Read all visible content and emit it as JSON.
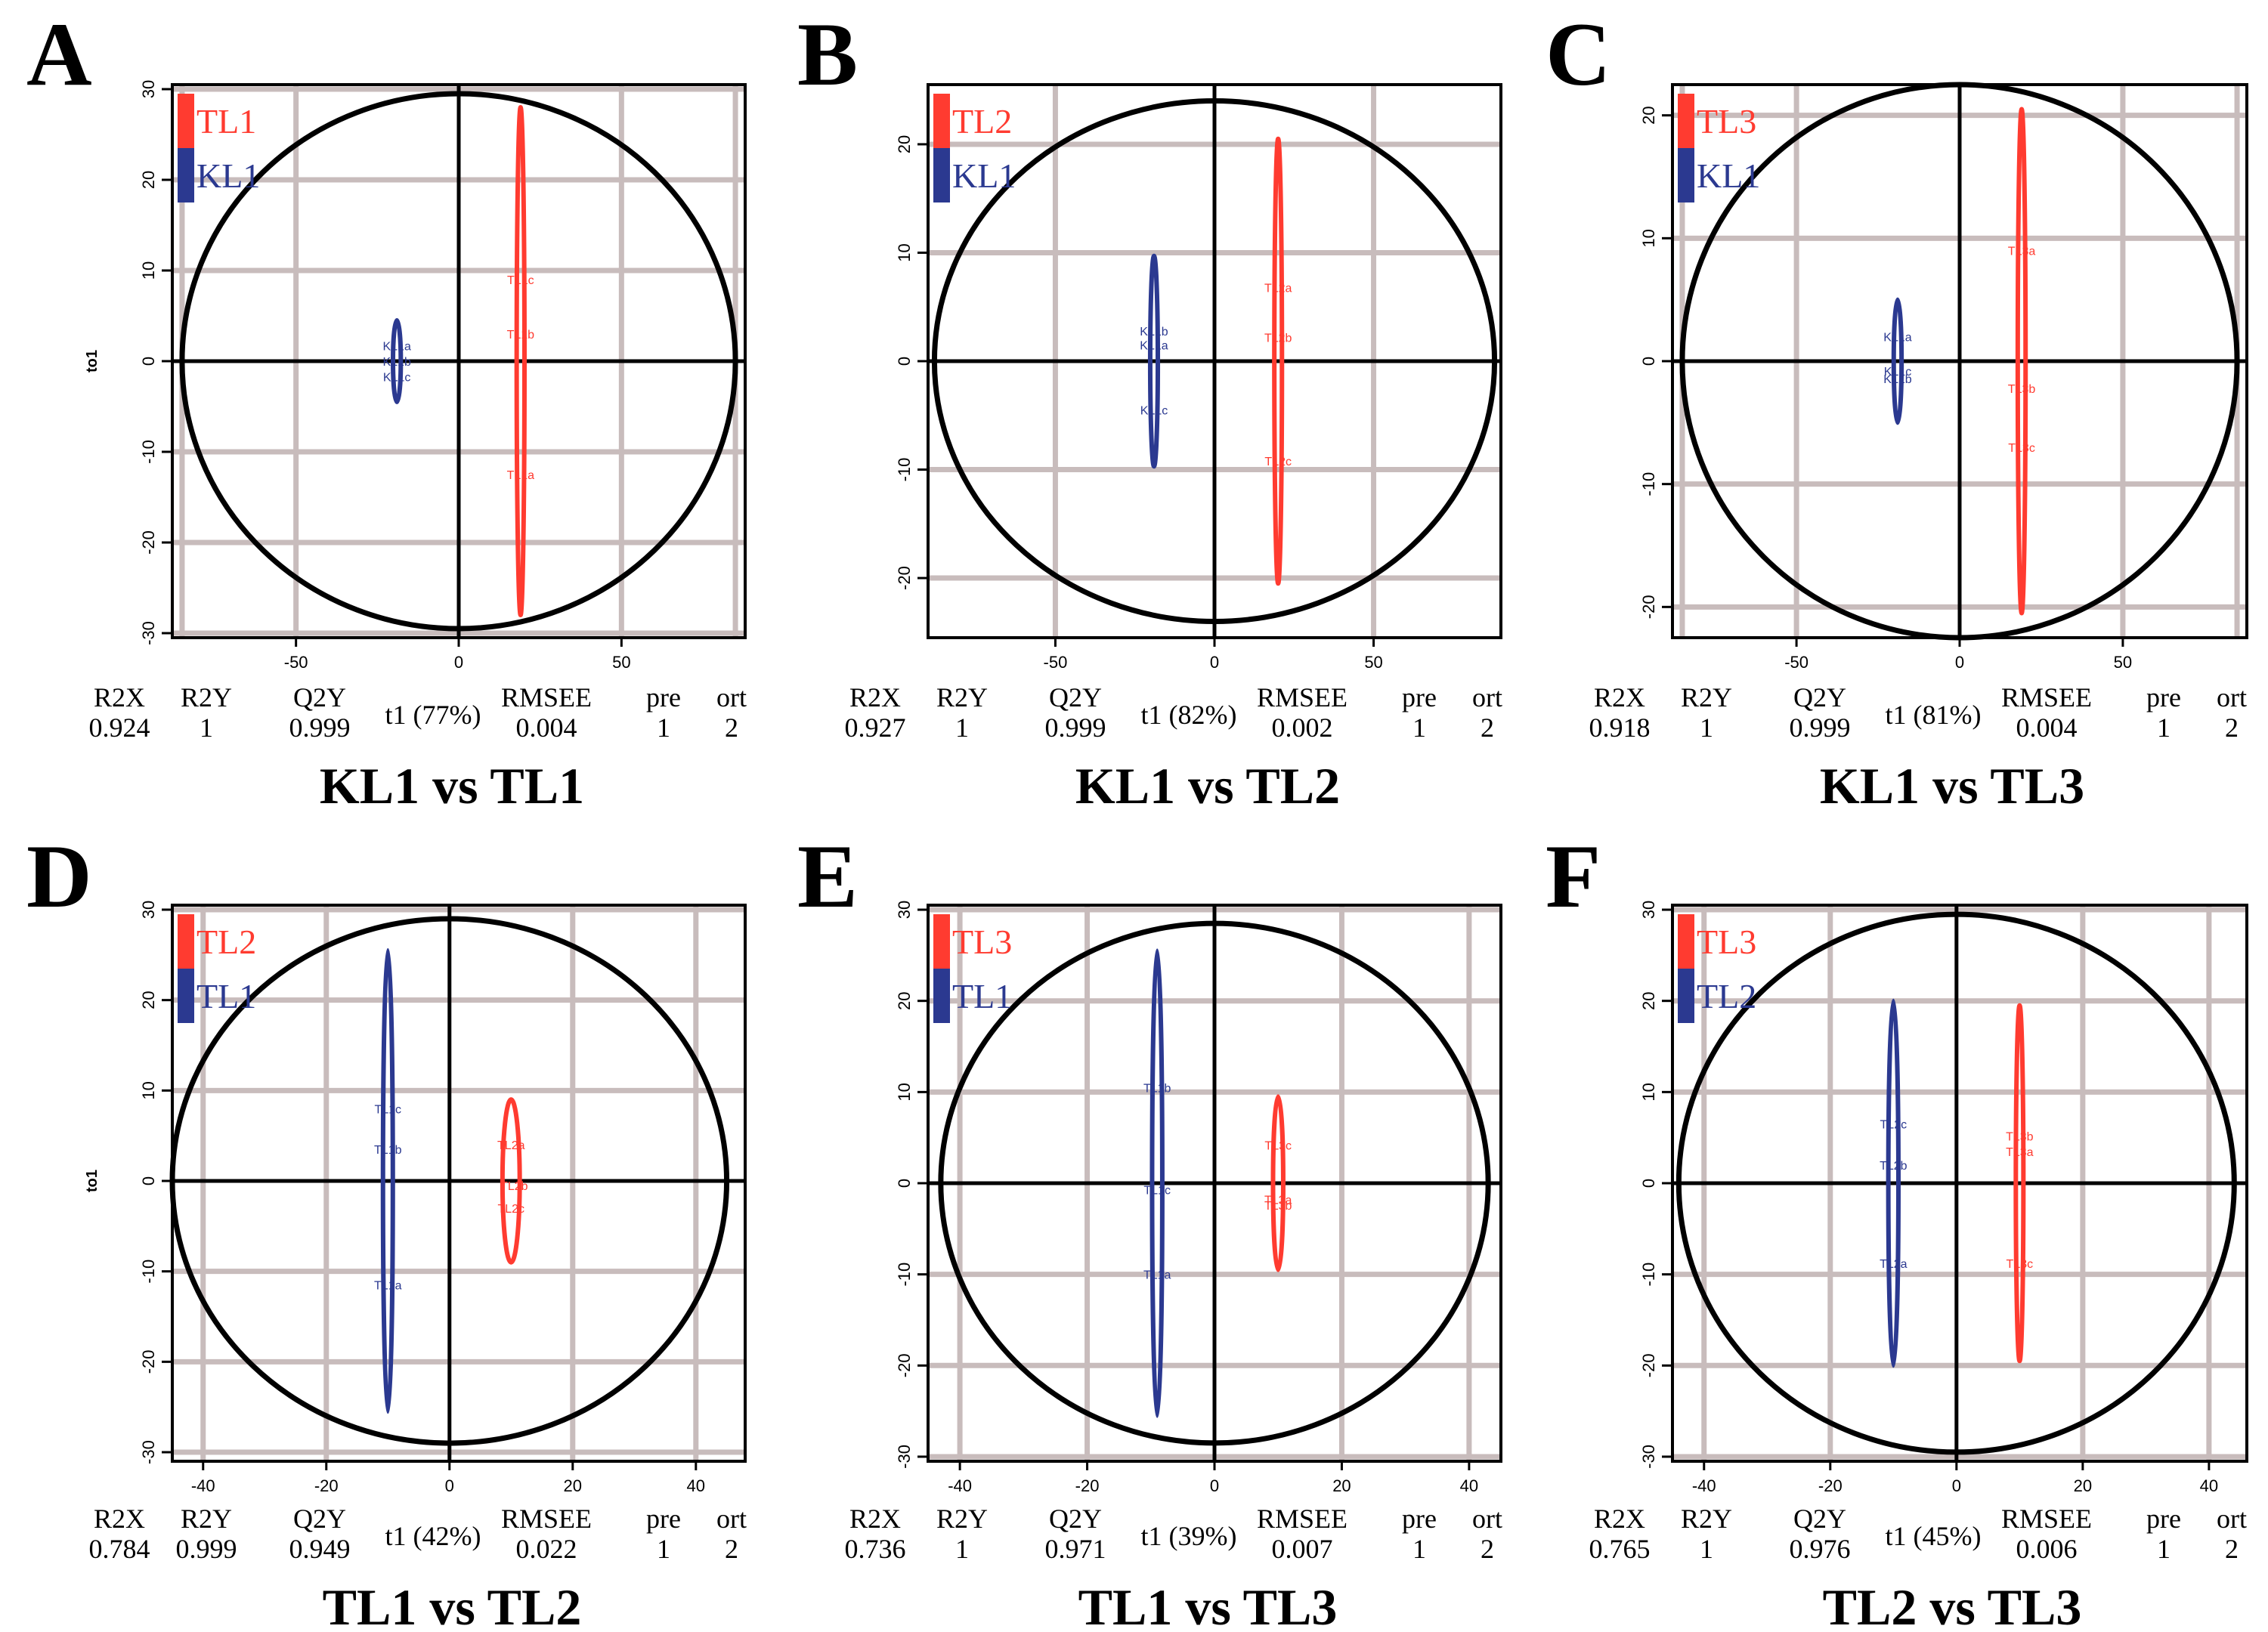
{
  "colors": {
    "red": "#ff3b30",
    "blue": "#2b3990",
    "grid": "#c8bcbc",
    "black": "#000000"
  },
  "chart_data": [
    {
      "panel_letter": "A",
      "type": "scatter",
      "title": "KL1 vs TL1",
      "xlim": [
        -88,
        88
      ],
      "ylim": [
        -30.5,
        30.5
      ],
      "xticks": [
        -50,
        0,
        50
      ],
      "yticks": [
        -30,
        -20,
        -10,
        0,
        10,
        20,
        30
      ],
      "hgrid": [
        -30,
        -20,
        -10,
        10,
        20,
        30
      ],
      "vgrid": [
        -85,
        -50,
        50,
        85
      ],
      "ylabel": "to1",
      "xlabel": "t1 (77%)",
      "circle_rx": 85,
      "circle_ry": 29.5,
      "legend": [
        {
          "label": "TL1",
          "color": "red"
        },
        {
          "label": "KL1",
          "color": "blue"
        }
      ],
      "groups": [
        {
          "name": "KL1",
          "color": "blue",
          "center": [
            -19,
            0
          ],
          "ellipse_r": [
            1.2,
            4.5
          ],
          "points": [
            {
              "label": "KL1a",
              "t1": -19,
              "to1": 1.7
            },
            {
              "label": "KL1b",
              "t1": -19,
              "to1": 0
            },
            {
              "label": "KL1c",
              "t1": -19,
              "to1": -1.7
            }
          ]
        },
        {
          "name": "TL1",
          "color": "red",
          "center": [
            19,
            0
          ],
          "ellipse_r": [
            1.2,
            28
          ],
          "points": [
            {
              "label": "TL1c",
              "t1": 19,
              "to1": 9
            },
            {
              "label": "TL1b",
              "t1": 19,
              "to1": 3
            },
            {
              "label": "TL1a",
              "t1": 19,
              "to1": -12.5
            }
          ]
        }
      ],
      "stats": {
        "headers": [
          "R2X",
          "R2Y",
          "Q2Y",
          "RMSEE",
          "pre",
          "ort"
        ],
        "values": [
          "0.924",
          "1",
          "0.999",
          "0.004",
          "1",
          "2"
        ]
      }
    },
    {
      "panel_letter": "B",
      "type": "scatter",
      "title": "KL1 vs TL2",
      "xlim": [
        -90,
        90
      ],
      "ylim": [
        -25.5,
        25.5
      ],
      "xticks": [
        -50,
        0,
        50
      ],
      "yticks": [
        -20,
        -10,
        0,
        10,
        20
      ],
      "hgrid": [
        -20,
        -10,
        10,
        20
      ],
      "vgrid": [
        -50,
        50
      ],
      "ylabel": "",
      "xlabel": "t1 (82%)",
      "circle_rx": 88,
      "circle_ry": 24,
      "legend": [
        {
          "label": "TL2",
          "color": "red"
        },
        {
          "label": "KL1",
          "color": "blue"
        }
      ],
      "groups": [
        {
          "name": "KL1",
          "color": "blue",
          "center": [
            -19,
            0
          ],
          "ellipse_r": [
            1.2,
            9.7
          ],
          "points": [
            {
              "label": "KL1b",
              "t1": -19,
              "to1": 2.8
            },
            {
              "label": "KL1a",
              "t1": -19,
              "to1": 1.5
            },
            {
              "label": "KL1c",
              "t1": -19,
              "to1": -4.5
            }
          ]
        },
        {
          "name": "TL2",
          "color": "red",
          "center": [
            20,
            0
          ],
          "ellipse_r": [
            1.2,
            20.5
          ],
          "points": [
            {
              "label": "TL2a",
              "t1": 20,
              "to1": 6.8
            },
            {
              "label": "TL2b",
              "t1": 20,
              "to1": 2.2
            },
            {
              "label": "TL2c",
              "t1": 20,
              "to1": -9.2
            }
          ]
        }
      ],
      "stats": {
        "headers": [
          "R2X",
          "R2Y",
          "Q2Y",
          "RMSEE",
          "pre",
          "ort"
        ],
        "values": [
          "0.927",
          "1",
          "0.999",
          "0.002",
          "1",
          "2"
        ]
      }
    },
    {
      "panel_letter": "C",
      "type": "scatter",
      "title": "KL1 vs TL3",
      "xlim": [
        -88,
        88
      ],
      "ylim": [
        -22.5,
        22.5
      ],
      "xticks": [
        -50,
        0,
        50
      ],
      "yticks": [
        -20,
        -10,
        0,
        10,
        20
      ],
      "hgrid": [
        -20,
        -10,
        10,
        20
      ],
      "vgrid": [
        -85,
        -50,
        50,
        85
      ],
      "ylabel": "",
      "xlabel": "t1 (81%)",
      "circle_rx": 85,
      "circle_ry": 22.5,
      "legend": [
        {
          "label": "TL3",
          "color": "red"
        },
        {
          "label": "KL1",
          "color": "blue"
        }
      ],
      "groups": [
        {
          "name": "KL1",
          "color": "blue",
          "center": [
            -19,
            0
          ],
          "ellipse_r": [
            1.2,
            5
          ],
          "points": [
            {
              "label": "KL1a",
              "t1": -19,
              "to1": 2
            },
            {
              "label": "KL1c",
              "t1": -19,
              "to1": -0.8
            },
            {
              "label": "KL1b",
              "t1": -19,
              "to1": -1.4
            }
          ]
        },
        {
          "name": "TL3",
          "color": "red",
          "center": [
            19,
            0
          ],
          "ellipse_r": [
            1.2,
            20.5
          ],
          "points": [
            {
              "label": "TL3a",
              "t1": 19,
              "to1": 9
            },
            {
              "label": "TL3b",
              "t1": 19,
              "to1": -2.2
            },
            {
              "label": "TL3c",
              "t1": 19,
              "to1": -7
            }
          ]
        }
      ],
      "stats": {
        "headers": [
          "R2X",
          "R2Y",
          "Q2Y",
          "RMSEE",
          "pre",
          "ort"
        ],
        "values": [
          "0.918",
          "1",
          "0.999",
          "0.004",
          "1",
          "2"
        ]
      }
    },
    {
      "panel_letter": "D",
      "type": "scatter",
      "title": "TL1 vs TL2",
      "xlim": [
        -45,
        48
      ],
      "ylim": [
        -31,
        30.5
      ],
      "xticks": [
        -40,
        -20,
        0,
        20,
        40
      ],
      "yticks": [
        -30,
        -20,
        -10,
        0,
        10,
        20,
        30
      ],
      "hgrid": [
        -30,
        -20,
        -10,
        10,
        20,
        30
      ],
      "vgrid": [
        -40,
        -20,
        20,
        40
      ],
      "ylabel": "to1",
      "xlabel": "t1 (42%)",
      "circle_rx": 45,
      "circle_ry": 29,
      "legend": [
        {
          "label": "TL2",
          "color": "red"
        },
        {
          "label": "TL1",
          "color": "blue"
        }
      ],
      "groups": [
        {
          "name": "TL1",
          "color": "blue",
          "center": [
            -10,
            0
          ],
          "ellipse_r": [
            0.8,
            25.5
          ],
          "points": [
            {
              "label": "TL1c",
              "t1": -10,
              "to1": 8
            },
            {
              "label": "TL1b",
              "t1": -10,
              "to1": 3.5
            },
            {
              "label": "TL1a",
              "t1": -10,
              "to1": -11.5
            }
          ]
        },
        {
          "name": "TL2",
          "color": "red",
          "center": [
            10,
            0
          ],
          "ellipse_r": [
            1.4,
            9
          ],
          "points": [
            {
              "label": "TL2a",
              "t1": 10,
              "to1": 4
            },
            {
              "label": "TL2b",
              "t1": 10.5,
              "to1": -0.5
            },
            {
              "label": "TL2c",
              "t1": 10,
              "to1": -3
            }
          ]
        }
      ],
      "stats": {
        "headers": [
          "R2X",
          "R2Y",
          "Q2Y",
          "RMSEE",
          "pre",
          "ort"
        ],
        "values": [
          "0.784",
          "0.999",
          "0.949",
          "0.022",
          "1",
          "2"
        ]
      }
    },
    {
      "panel_letter": "E",
      "type": "scatter",
      "title": "TL1 vs TL3",
      "xlim": [
        -45,
        45
      ],
      "ylim": [
        -30.5,
        30.5
      ],
      "xticks": [
        -40,
        -20,
        0,
        20,
        40
      ],
      "yticks": [
        -30,
        -20,
        -10,
        0,
        10,
        20,
        30
      ],
      "hgrid": [
        -30,
        -20,
        -10,
        10,
        20,
        30
      ],
      "vgrid": [
        -40,
        -20,
        20,
        40
      ],
      "ylabel": "",
      "xlabel": "t1 (39%)",
      "circle_rx": 43,
      "circle_ry": 28.5,
      "legend": [
        {
          "label": "TL3",
          "color": "red"
        },
        {
          "label": "TL1",
          "color": "blue"
        }
      ],
      "groups": [
        {
          "name": "TL1",
          "color": "blue",
          "center": [
            -9,
            0
          ],
          "ellipse_r": [
            0.8,
            25.5
          ],
          "points": [
            {
              "label": "TL1b",
              "t1": -9,
              "to1": 10.5
            },
            {
              "label": "TL1c",
              "t1": -9,
              "to1": -0.7
            },
            {
              "label": "TL1a",
              "t1": -9,
              "to1": -10
            }
          ]
        },
        {
          "name": "TL3",
          "color": "red",
          "center": [
            10,
            0
          ],
          "ellipse_r": [
            0.8,
            9.5
          ],
          "points": [
            {
              "label": "TL3c",
              "t1": 10,
              "to1": 4.2
            },
            {
              "label": "TL3a",
              "t1": 10,
              "to1": -1.8
            },
            {
              "label": "TL3b",
              "t1": 10,
              "to1": -2.4
            }
          ]
        }
      ],
      "stats": {
        "headers": [
          "R2X",
          "R2Y",
          "Q2Y",
          "RMSEE",
          "pre",
          "ort"
        ],
        "values": [
          "0.736",
          "1",
          "0.971",
          "0.007",
          "1",
          "2"
        ]
      }
    },
    {
      "panel_letter": "F",
      "type": "scatter",
      "title": "TL2 vs TL3",
      "xlim": [
        -45,
        46
      ],
      "ylim": [
        -30.5,
        30.5
      ],
      "xticks": [
        -40,
        -20,
        0,
        20,
        40
      ],
      "yticks": [
        -30,
        -20,
        -10,
        0,
        10,
        20,
        30
      ],
      "hgrid": [
        -30,
        -20,
        -10,
        10,
        20,
        30
      ],
      "vgrid": [
        -40,
        -20,
        20,
        40
      ],
      "ylabel": "",
      "xlabel": "t1 (45%)",
      "circle_rx": 44,
      "circle_ry": 29.5,
      "legend": [
        {
          "label": "TL3",
          "color": "red"
        },
        {
          "label": "TL2",
          "color": "blue"
        }
      ],
      "groups": [
        {
          "name": "TL2",
          "color": "blue",
          "center": [
            -10,
            0
          ],
          "ellipse_r": [
            0.8,
            20
          ],
          "points": [
            {
              "label": "TL2c",
              "t1": -10,
              "to1": 6.5
            },
            {
              "label": "TL2b",
              "t1": -10,
              "to1": 2
            },
            {
              "label": "TL2a",
              "t1": -10,
              "to1": -8.8
            }
          ]
        },
        {
          "name": "TL3",
          "color": "red",
          "center": [
            10,
            0
          ],
          "ellipse_r": [
            0.6,
            19.5
          ],
          "points": [
            {
              "label": "TL3b",
              "t1": 10,
              "to1": 5.2
            },
            {
              "label": "TL3a",
              "t1": 10,
              "to1": 3.5
            },
            {
              "label": "TL3c",
              "t1": 10,
              "to1": -8.8
            }
          ]
        }
      ],
      "stats": {
        "headers": [
          "R2X",
          "R2Y",
          "Q2Y",
          "RMSEE",
          "pre",
          "ort"
        ],
        "values": [
          "0.765",
          "1",
          "0.976",
          "0.006",
          "1",
          "2"
        ]
      }
    }
  ]
}
